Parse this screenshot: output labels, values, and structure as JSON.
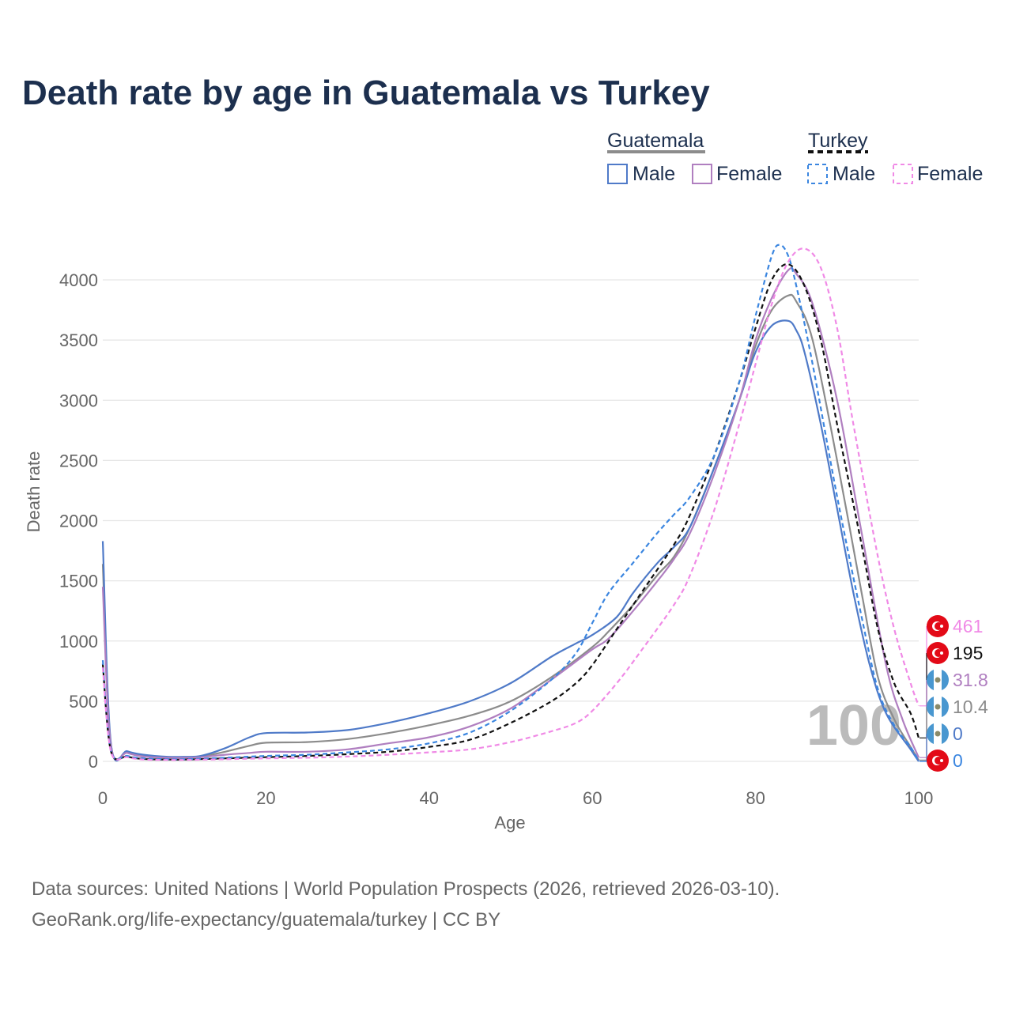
{
  "title": "Death rate by age in Guatemala vs Turkey",
  "legend": {
    "groups": [
      {
        "country": "Guatemala",
        "items": [
          "Male",
          "Female"
        ]
      },
      {
        "country": "Turkey",
        "items": [
          "Male",
          "Female"
        ]
      }
    ]
  },
  "current_age_label": "100",
  "source_line1": "Data sources: United Nations | World Population Prospects (2026, retrieved 2026-03-10).",
  "source_line2": "GeoRank.org/life-expectancy/guatemala/turkey | CC BY",
  "colors": {
    "title": "#1c2f4e",
    "guatemala_male": "#4f7ac8",
    "guatemala_female": "#b07fc0",
    "guatemala_total": "#8c8c8c",
    "turkey_male": "#3b86e0",
    "turkey_female": "#f08ae6",
    "turkey_total": "#111111",
    "turkey_flag": "#e30a17",
    "guatemala_flag": "#4997d0"
  },
  "chart_data": {
    "type": "line",
    "title": "Death rate by age in Guatemala vs Turkey",
    "xlabel": "Age",
    "ylabel": "Death rate",
    "xlim": [
      0,
      100
    ],
    "ylim": [
      0,
      4300
    ],
    "xticks": [
      0,
      20,
      40,
      60,
      80,
      100
    ],
    "yticks": [
      0,
      500,
      1000,
      1500,
      2000,
      2500,
      3000,
      3500,
      4000
    ],
    "grid": true,
    "series": [
      {
        "name": "Guatemala Total",
        "country": "Guatemala",
        "sex": "Total",
        "color": "#8c8c8c",
        "dash": false,
        "points": [
          [
            0,
            1640
          ],
          [
            1,
            140
          ],
          [
            3,
            80
          ],
          [
            5,
            50
          ],
          [
            8,
            35
          ],
          [
            10,
            35
          ],
          [
            12,
            40
          ],
          [
            15,
            80
          ],
          [
            18,
            130
          ],
          [
            20,
            155
          ],
          [
            25,
            160
          ],
          [
            30,
            185
          ],
          [
            35,
            235
          ],
          [
            40,
            300
          ],
          [
            45,
            380
          ],
          [
            50,
            500
          ],
          [
            55,
            700
          ],
          [
            60,
            950
          ],
          [
            62,
            1080
          ],
          [
            65,
            1300
          ],
          [
            68,
            1550
          ],
          [
            70,
            1700
          ],
          [
            72,
            1950
          ],
          [
            75,
            2450
          ],
          [
            78,
            3000
          ],
          [
            80,
            3450
          ],
          [
            82,
            3750
          ],
          [
            84,
            3870
          ],
          [
            85,
            3820
          ],
          [
            87,
            3500
          ],
          [
            90,
            2500
          ],
          [
            93,
            1400
          ],
          [
            95,
            700
          ],
          [
            97,
            350
          ],
          [
            99,
            120
          ],
          [
            100,
            10.4
          ]
        ],
        "end_label": "10.4"
      },
      {
        "name": "Guatemala Male",
        "country": "Guatemala",
        "sex": "Male",
        "color": "#4f7ac8",
        "dash": false,
        "points": [
          [
            0,
            1830
          ],
          [
            1,
            150
          ],
          [
            3,
            85
          ],
          [
            5,
            55
          ],
          [
            8,
            38
          ],
          [
            10,
            38
          ],
          [
            12,
            45
          ],
          [
            15,
            110
          ],
          [
            18,
            200
          ],
          [
            20,
            235
          ],
          [
            25,
            240
          ],
          [
            30,
            260
          ],
          [
            35,
            320
          ],
          [
            40,
            400
          ],
          [
            45,
            500
          ],
          [
            50,
            650
          ],
          [
            55,
            870
          ],
          [
            58,
            980
          ],
          [
            60,
            1050
          ],
          [
            63,
            1200
          ],
          [
            65,
            1400
          ],
          [
            68,
            1650
          ],
          [
            70,
            1780
          ],
          [
            72,
            1950
          ],
          [
            75,
            2450
          ],
          [
            78,
            3000
          ],
          [
            80,
            3400
          ],
          [
            82,
            3620
          ],
          [
            84,
            3660
          ],
          [
            85,
            3580
          ],
          [
            86,
            3400
          ],
          [
            88,
            2800
          ],
          [
            90,
            2100
          ],
          [
            92,
            1400
          ],
          [
            94,
            800
          ],
          [
            96,
            400
          ],
          [
            99,
            100
          ],
          [
            100,
            0
          ]
        ],
        "end_label": "0"
      },
      {
        "name": "Guatemala Female",
        "country": "Guatemala",
        "sex": "Female",
        "color": "#b07fc0",
        "dash": false,
        "points": [
          [
            0,
            1450
          ],
          [
            1,
            130
          ],
          [
            3,
            70
          ],
          [
            5,
            40
          ],
          [
            8,
            30
          ],
          [
            10,
            30
          ],
          [
            12,
            35
          ],
          [
            15,
            55
          ],
          [
            18,
            70
          ],
          [
            20,
            80
          ],
          [
            25,
            80
          ],
          [
            30,
            100
          ],
          [
            35,
            150
          ],
          [
            40,
            200
          ],
          [
            45,
            290
          ],
          [
            50,
            440
          ],
          [
            55,
            680
          ],
          [
            60,
            930
          ],
          [
            62,
            1020
          ],
          [
            65,
            1250
          ],
          [
            68,
            1500
          ],
          [
            70,
            1680
          ],
          [
            72,
            1900
          ],
          [
            75,
            2400
          ],
          [
            78,
            3000
          ],
          [
            80,
            3500
          ],
          [
            82,
            3850
          ],
          [
            84,
            4080
          ],
          [
            85,
            4050
          ],
          [
            87,
            3800
          ],
          [
            90,
            3000
          ],
          [
            93,
            1900
          ],
          [
            96,
            800
          ],
          [
            98,
            350
          ],
          [
            100,
            31.8
          ]
        ],
        "end_label": "31.8"
      },
      {
        "name": "Turkey Total",
        "country": "Turkey",
        "sex": "Total",
        "color": "#111111",
        "dash": true,
        "points": [
          [
            0,
            810
          ],
          [
            1,
            85
          ],
          [
            3,
            40
          ],
          [
            5,
            20
          ],
          [
            8,
            15
          ],
          [
            10,
            15
          ],
          [
            15,
            25
          ],
          [
            20,
            35
          ],
          [
            25,
            45
          ],
          [
            30,
            60
          ],
          [
            35,
            80
          ],
          [
            40,
            120
          ],
          [
            45,
            180
          ],
          [
            50,
            320
          ],
          [
            55,
            500
          ],
          [
            58,
            650
          ],
          [
            60,
            800
          ],
          [
            63,
            1100
          ],
          [
            66,
            1400
          ],
          [
            70,
            1800
          ],
          [
            72,
            2050
          ],
          [
            75,
            2550
          ],
          [
            78,
            3150
          ],
          [
            80,
            3600
          ],
          [
            82,
            4000
          ],
          [
            84,
            4130
          ],
          [
            86,
            3950
          ],
          [
            88,
            3500
          ],
          [
            90,
            2800
          ],
          [
            93,
            1800
          ],
          [
            95,
            1100
          ],
          [
            97,
            650
          ],
          [
            99,
            400
          ],
          [
            100,
            195
          ]
        ],
        "end_label": "195"
      },
      {
        "name": "Turkey Male",
        "country": "Turkey",
        "sex": "Male",
        "color": "#3b86e0",
        "dash": true,
        "points": [
          [
            0,
            840
          ],
          [
            1,
            90
          ],
          [
            3,
            45
          ],
          [
            5,
            25
          ],
          [
            8,
            18
          ],
          [
            10,
            18
          ],
          [
            15,
            30
          ],
          [
            20,
            45
          ],
          [
            25,
            55
          ],
          [
            30,
            75
          ],
          [
            35,
            100
          ],
          [
            40,
            150
          ],
          [
            45,
            240
          ],
          [
            50,
            420
          ],
          [
            55,
            680
          ],
          [
            58,
            900
          ],
          [
            60,
            1150
          ],
          [
            62,
            1400
          ],
          [
            65,
            1650
          ],
          [
            68,
            1900
          ],
          [
            70,
            2050
          ],
          [
            72,
            2200
          ],
          [
            75,
            2550
          ],
          [
            78,
            3150
          ],
          [
            80,
            3700
          ],
          [
            82,
            4200
          ],
          [
            83,
            4290
          ],
          [
            84,
            4200
          ],
          [
            85,
            3950
          ],
          [
            87,
            3300
          ],
          [
            90,
            2200
          ],
          [
            93,
            1200
          ],
          [
            95,
            600
          ],
          [
            97,
            300
          ],
          [
            99,
            120
          ],
          [
            100,
            0
          ]
        ],
        "end_label": "0"
      },
      {
        "name": "Turkey Female",
        "country": "Turkey",
        "sex": "Female",
        "color": "#f08ae6",
        "dash": true,
        "points": [
          [
            0,
            780
          ],
          [
            1,
            80
          ],
          [
            3,
            35
          ],
          [
            5,
            15
          ],
          [
            8,
            12
          ],
          [
            10,
            12
          ],
          [
            15,
            18
          ],
          [
            20,
            25
          ],
          [
            25,
            30
          ],
          [
            30,
            40
          ],
          [
            35,
            55
          ],
          [
            40,
            75
          ],
          [
            45,
            100
          ],
          [
            50,
            160
          ],
          [
            55,
            250
          ],
          [
            58,
            320
          ],
          [
            60,
            420
          ],
          [
            63,
            650
          ],
          [
            66,
            920
          ],
          [
            70,
            1300
          ],
          [
            72,
            1550
          ],
          [
            75,
            2100
          ],
          [
            78,
            2800
          ],
          [
            80,
            3300
          ],
          [
            82,
            3800
          ],
          [
            84,
            4150
          ],
          [
            86,
            4260
          ],
          [
            88,
            4100
          ],
          [
            90,
            3600
          ],
          [
            92,
            2800
          ],
          [
            95,
            1700
          ],
          [
            97,
            1100
          ],
          [
            99,
            650
          ],
          [
            100,
            461
          ]
        ],
        "end_label": "461"
      }
    ]
  }
}
